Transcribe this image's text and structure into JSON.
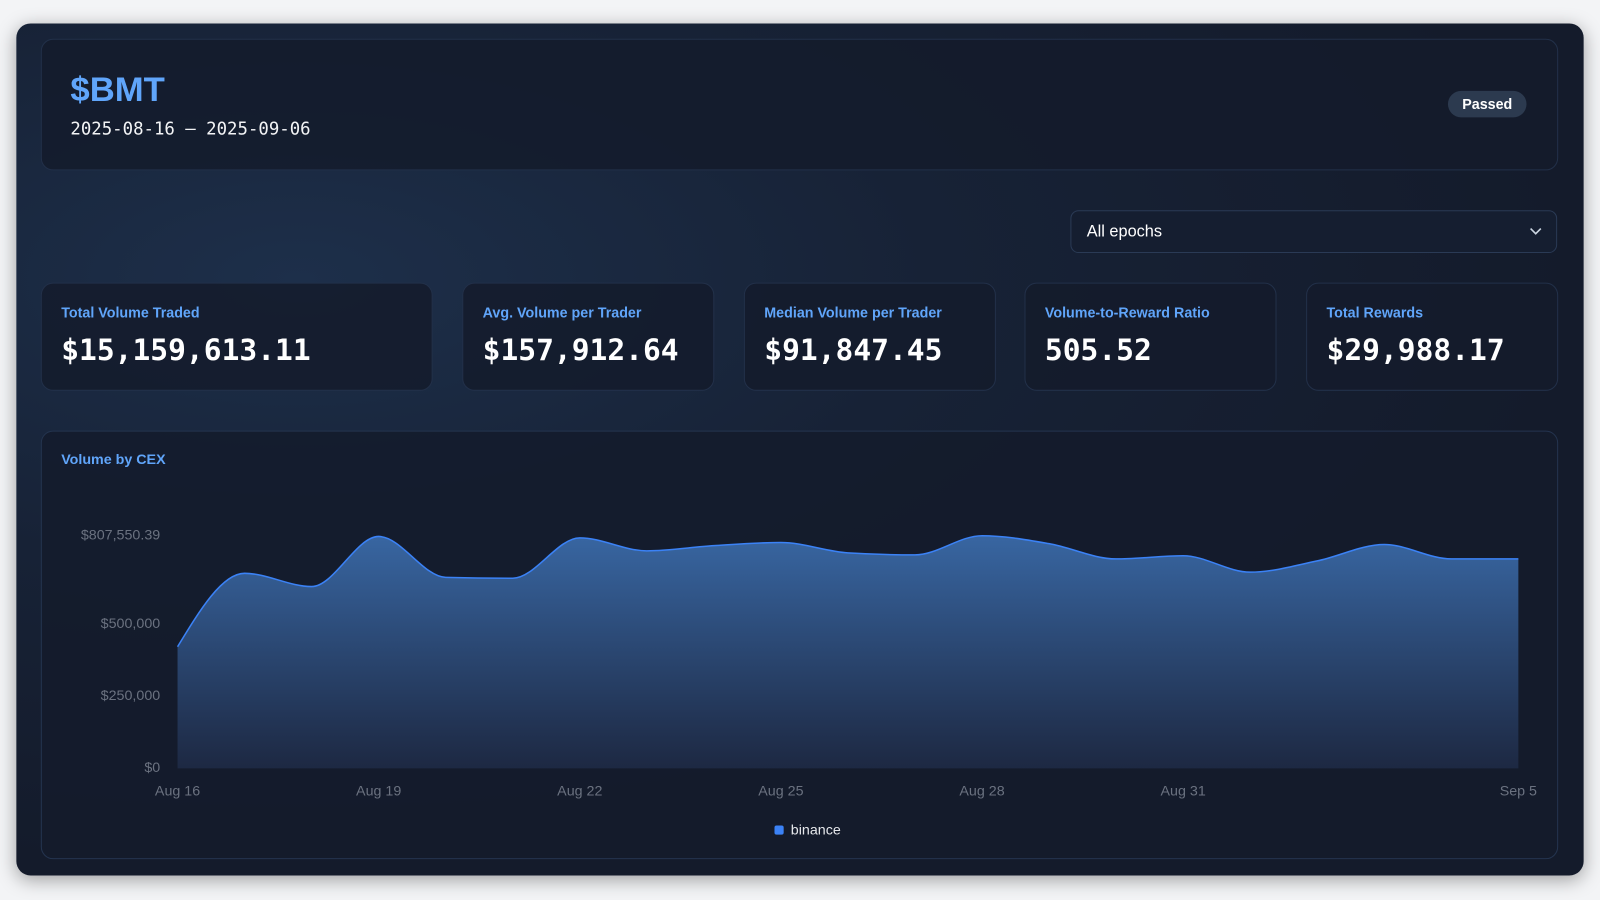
{
  "header": {
    "title": "$BMT",
    "date_range": "2025-08-16 — 2025-09-06",
    "status": "Passed"
  },
  "filter": "All epochs",
  "stats": [
    {
      "label": "Total Volume Traded",
      "value": "$15,159,613.11"
    },
    {
      "label": "Avg. Volume per Trader",
      "value": "$157,912.64"
    },
    {
      "label": "Median Volume per Trader",
      "value": "$91,847.45"
    },
    {
      "label": "Volume-to-Reward Ratio",
      "value": "505.52"
    },
    {
      "label": "Total Rewards",
      "value": "$29,988.17"
    }
  ],
  "chart_data": {
    "type": "area",
    "title": "Volume by CEX",
    "categories": [
      "Aug 16",
      null,
      null,
      "Aug 19",
      null,
      null,
      "Aug 22",
      null,
      null,
      "Aug 25",
      null,
      null,
      "Aug 28",
      null,
      null,
      "Aug 31",
      null,
      null,
      null,
      null,
      "Sep 5"
    ],
    "series": [
      {
        "name": "binance",
        "color": "#3b82f6",
        "values": [
          422000,
          677000,
          631000,
          805000,
          663000,
          660000,
          800000,
          755000,
          773000,
          784000,
          748000,
          741000,
          807550.39,
          780000,
          727000,
          738000,
          681000,
          720000,
          777000,
          727000,
          727000
        ]
      }
    ],
    "ylim": [
      0,
      807550.39
    ],
    "yticks": [
      {
        "value": 0,
        "label": "$0"
      },
      {
        "value": 250000,
        "label": "$250,000"
      },
      {
        "value": 500000,
        "label": "$500,000"
      },
      {
        "value": 807550.39,
        "label": "$807,550.39"
      }
    ],
    "grid": false
  }
}
